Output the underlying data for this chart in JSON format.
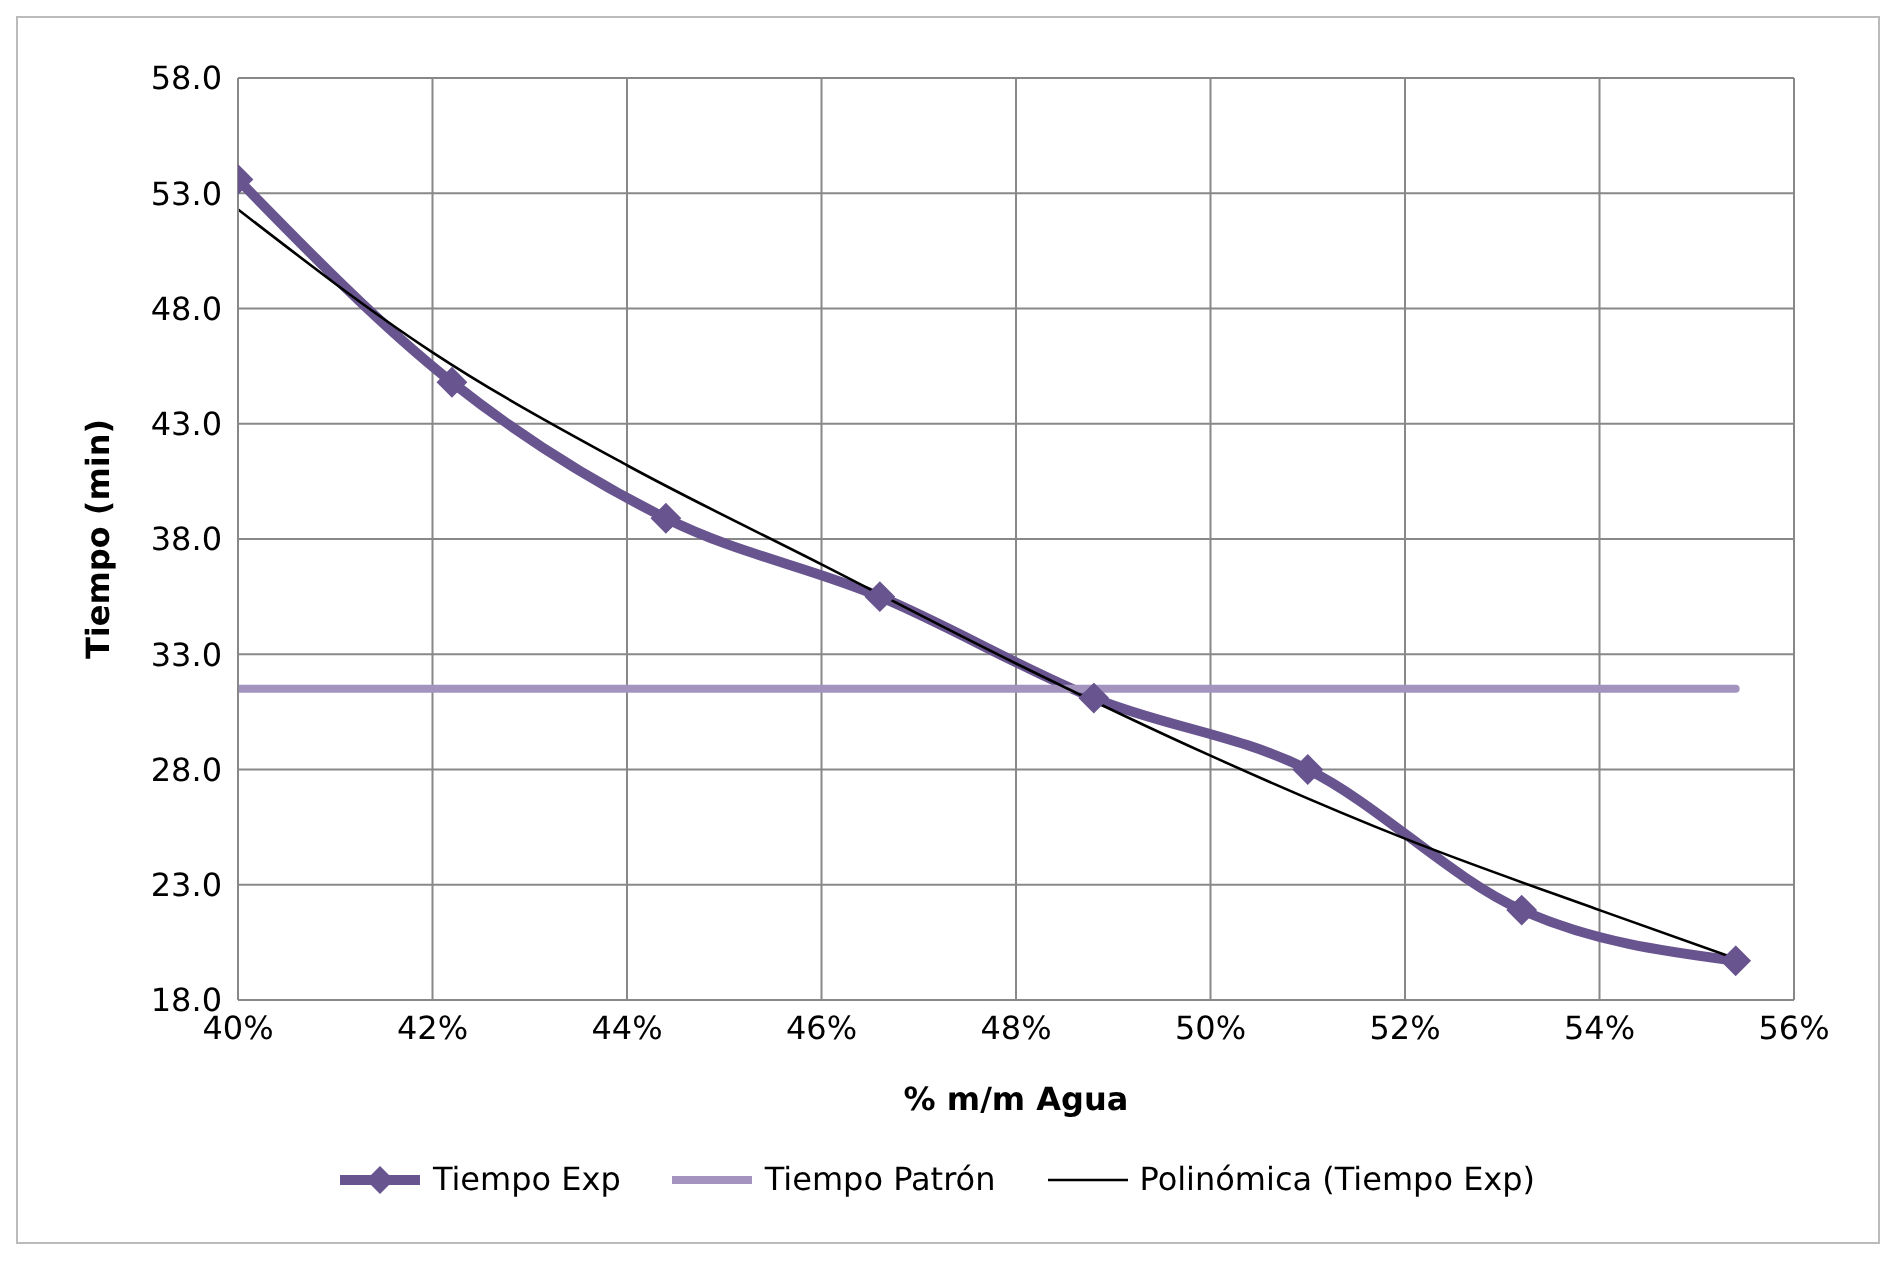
{
  "chart_data": {
    "type": "line",
    "xlabel": "% m/m Agua",
    "ylabel": "Tiempo (min)",
    "xlim": [
      40,
      56
    ],
    "xticks": [
      {
        "value": 40,
        "label": "40%"
      },
      {
        "value": 42,
        "label": "42%"
      },
      {
        "value": 44,
        "label": "44%"
      },
      {
        "value": 46,
        "label": "46%"
      },
      {
        "value": 48,
        "label": "48%"
      },
      {
        "value": 50,
        "label": "50%"
      },
      {
        "value": 52,
        "label": "52%"
      },
      {
        "value": 54,
        "label": "54%"
      },
      {
        "value": 56,
        "label": "56%"
      }
    ],
    "ylim": [
      18,
      58
    ],
    "yticks": [
      {
        "value": 18,
        "label": "18.0"
      },
      {
        "value": 23,
        "label": "23.0"
      },
      {
        "value": 28,
        "label": "28.0"
      },
      {
        "value": 33,
        "label": "33.0"
      },
      {
        "value": 38,
        "label": "38.0"
      },
      {
        "value": 43,
        "label": "43.0"
      },
      {
        "value": 48,
        "label": "48.0"
      },
      {
        "value": 53,
        "label": "53.0"
      },
      {
        "value": 58,
        "label": "58.0"
      }
    ],
    "grid": true,
    "legend": "bottom",
    "series": [
      {
        "name": "Tiempo Exp",
        "color": "#68548f",
        "marker": "diamond",
        "x": [
          40,
          42.2,
          44.4,
          46.6,
          48.8,
          51.0,
          53.2,
          55.4
        ],
        "values": [
          53.6,
          44.8,
          38.9,
          35.5,
          31.1,
          28.0,
          21.9,
          19.7
        ]
      },
      {
        "name": "Tiempo Patrón",
        "color": "#a393be",
        "marker": "none",
        "x": [
          40,
          55.4
        ],
        "values": [
          31.5,
          31.5
        ]
      },
      {
        "name": "Polinómica (Tiempo Exp)",
        "color": "#000000",
        "marker": "none",
        "x": [
          40,
          42,
          44,
          46,
          48,
          50,
          52,
          54,
          55.4
        ],
        "values": [
          52.3,
          46.1,
          41.2,
          36.9,
          32.6,
          28.6,
          25.0,
          21.9,
          19.8
        ]
      }
    ]
  }
}
